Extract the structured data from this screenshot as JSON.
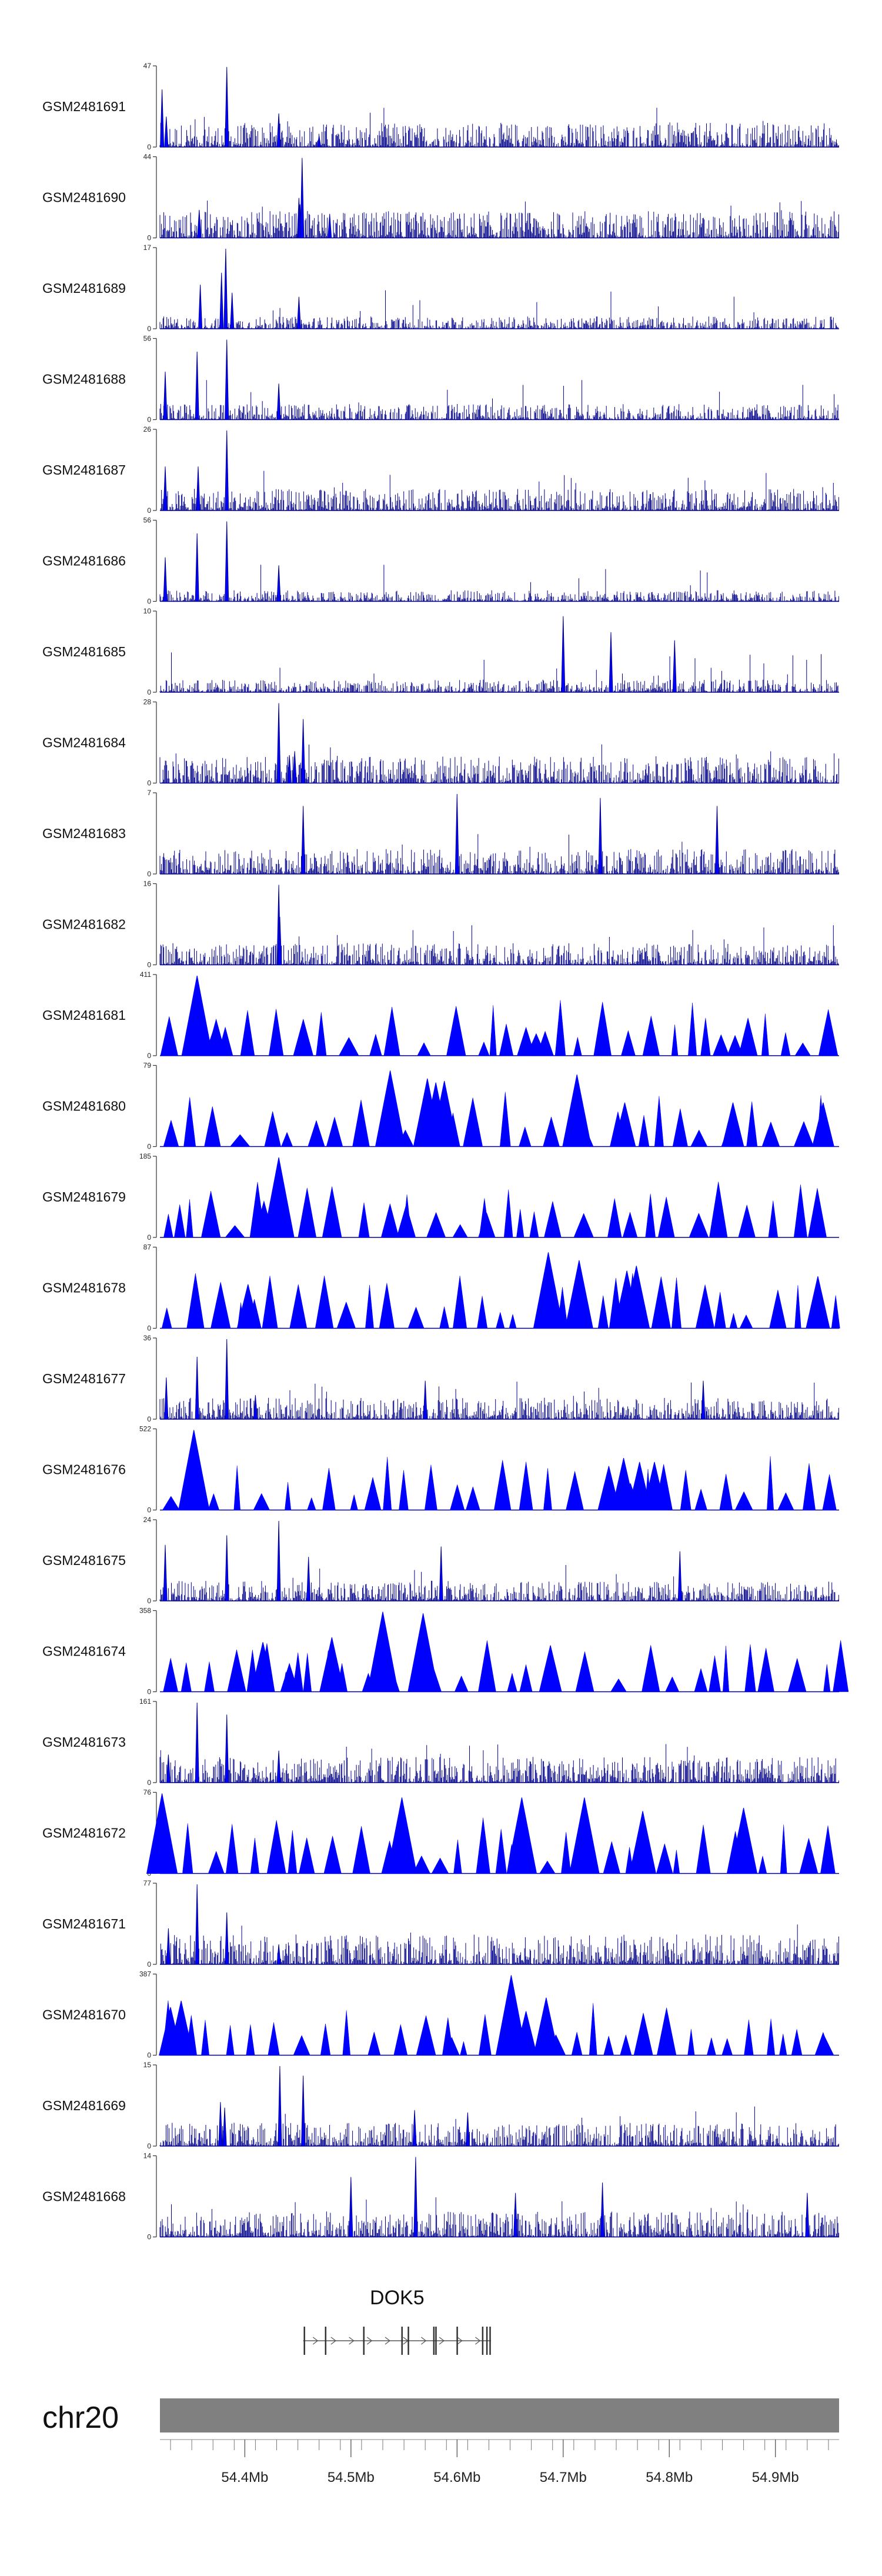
{
  "chart_data": {
    "type": "area",
    "chromosome": "chr20",
    "x_unit": "Mb",
    "xlim": [
      54.32,
      54.96
    ],
    "x_ticks": [
      54.4,
      54.5,
      54.6,
      54.7,
      54.8,
      54.9
    ],
    "x_tick_labels": [
      "54.4Mb",
      "54.5Mb",
      "54.6Mb",
      "54.7Mb",
      "54.8Mb",
      "54.9Mb"
    ],
    "colors": {
      "signal": "#0000ff",
      "signal_dark": "#00008b",
      "ideogram": "#808080",
      "axis": "#333333"
    },
    "tracks": [
      {
        "name": "GSM2481691",
        "ymax": 47,
        "ymin_label": "0",
        "ymax_label": "47",
        "style": "dense",
        "peaks": [
          [
            54.322,
            0.72
          ],
          [
            54.326,
            0.38
          ],
          [
            54.383,
            1.0
          ],
          [
            54.432,
            0.42
          ],
          [
            54.47,
            0.14
          ]
        ]
      },
      {
        "name": "GSM2481690",
        "ymax": 44,
        "ymin_label": "0",
        "ymax_label": "44",
        "style": "dense",
        "peaks": [
          [
            54.451,
            0.5
          ],
          [
            54.452,
            0.42
          ],
          [
            54.454,
            1.0
          ],
          [
            54.357,
            0.35
          ],
          [
            54.48,
            0.3
          ]
        ]
      },
      {
        "name": "GSM2481689",
        "ymax": 17,
        "ymin_label": "0",
        "ymax_label": "17",
        "style": "dense",
        "peaks": [
          [
            54.382,
            1.0
          ],
          [
            54.358,
            0.55
          ],
          [
            54.378,
            0.7
          ],
          [
            54.451,
            0.4
          ],
          [
            54.388,
            0.45
          ]
        ]
      },
      {
        "name": "GSM2481688",
        "ymax": 56,
        "ymin_label": "0",
        "ymax_label": "56",
        "style": "dense",
        "peaks": [
          [
            54.325,
            0.6
          ],
          [
            54.355,
            0.85
          ],
          [
            54.383,
            1.0
          ],
          [
            54.432,
            0.45
          ]
        ]
      },
      {
        "name": "GSM2481687",
        "ymax": 26,
        "ymin_label": "0",
        "ymax_label": "26",
        "style": "dense",
        "peaks": [
          [
            54.325,
            0.55
          ],
          [
            54.356,
            0.55
          ],
          [
            54.383,
            1.0
          ]
        ]
      },
      {
        "name": "GSM2481686",
        "ymax": 56,
        "ymin_label": "0",
        "ymax_label": "56",
        "style": "dense",
        "peaks": [
          [
            54.325,
            0.55
          ],
          [
            54.355,
            0.85
          ],
          [
            54.383,
            1.0
          ],
          [
            54.432,
            0.45
          ]
        ]
      },
      {
        "name": "GSM2481685",
        "ymax": 10,
        "ymin_label": "0",
        "ymax_label": "10",
        "style": "dense",
        "peaks": [
          [
            54.7,
            0.95
          ],
          [
            54.745,
            0.75
          ],
          [
            54.805,
            0.65
          ]
        ]
      },
      {
        "name": "GSM2481684",
        "ymax": 28,
        "ymin_label": "0",
        "ymax_label": "28",
        "style": "dense",
        "peaks": [
          [
            54.432,
            1.0
          ],
          [
            54.455,
            0.8
          ],
          [
            54.442,
            0.35
          ],
          [
            54.447,
            0.4
          ]
        ]
      },
      {
        "name": "GSM2481683",
        "ymax": 7,
        "ymin_label": "0",
        "ymax_label": "7",
        "style": "dense",
        "peaks": [
          [
            54.6,
            1.0
          ],
          [
            54.735,
            0.95
          ],
          [
            54.845,
            0.85
          ],
          [
            54.455,
            0.85
          ]
        ]
      },
      {
        "name": "GSM2481682",
        "ymax": 16,
        "ymin_label": "0",
        "ymax_label": "16",
        "style": "dense",
        "peaks": [
          [
            54.432,
            1.0
          ],
          [
            54.433,
            0.6
          ]
        ]
      },
      {
        "name": "GSM2481681",
        "ymax": 411,
        "ymin_label": "0",
        "ymax_label": "411",
        "style": "triangles",
        "peaks": [
          [
            54.355,
            1.0
          ],
          [
            54.373,
            0.45
          ],
          [
            54.37,
            0.3
          ],
          [
            54.665,
            0.35
          ],
          [
            54.683,
            0.3
          ],
          [
            54.862,
            0.25
          ]
        ]
      },
      {
        "name": "GSM2481680",
        "ymax": 79,
        "ymin_label": "0",
        "ymax_label": "79",
        "style": "triangles",
        "peaks": [
          [
            54.537,
            0.95
          ],
          [
            54.572,
            0.85
          ],
          [
            54.58,
            0.8
          ],
          [
            54.588,
            0.82
          ],
          [
            54.713,
            0.9
          ],
          [
            54.758,
            0.55
          ],
          [
            54.86,
            0.55
          ],
          [
            54.945,
            0.55
          ]
        ]
      },
      {
        "name": "GSM2481679",
        "ymax": 185,
        "ymin_label": "0",
        "ymax_label": "185",
        "style": "triangles",
        "peaks": [
          [
            54.432,
            1.0
          ],
          [
            54.418,
            0.45
          ],
          [
            54.552,
            0.4
          ],
          [
            54.628,
            0.3
          ]
        ]
      },
      {
        "name": "GSM2481678",
        "ymax": 87,
        "ymin_label": "0",
        "ymax_label": "87",
        "style": "triangles",
        "peaks": [
          [
            54.403,
            0.55
          ],
          [
            54.686,
            0.95
          ],
          [
            54.715,
            0.85
          ],
          [
            54.769,
            0.78
          ],
          [
            54.76,
            0.72
          ],
          [
            54.94,
            0.65
          ]
        ]
      },
      {
        "name": "GSM2481677",
        "ymax": 36,
        "ymin_label": "0",
        "ymax_label": "36",
        "style": "dense",
        "peaks": [
          [
            54.383,
            1.0
          ],
          [
            54.355,
            0.78
          ],
          [
            54.326,
            0.52
          ],
          [
            54.57,
            0.48
          ],
          [
            54.832,
            0.48
          ],
          [
            54.41,
            0.3
          ]
        ]
      },
      {
        "name": "GSM2481676",
        "ymax": 522,
        "ymin_label": "0",
        "ymax_label": "522",
        "style": "triangles",
        "peaks": [
          [
            54.352,
            1.0
          ],
          [
            54.353,
            0.9
          ],
          [
            54.757,
            0.65
          ],
          [
            54.772,
            0.6
          ],
          [
            54.786,
            0.6
          ],
          [
            54.743,
            0.55
          ]
        ]
      },
      {
        "name": "GSM2481675",
        "ymax": 24,
        "ymin_label": "0",
        "ymax_label": "24",
        "style": "dense",
        "peaks": [
          [
            54.432,
            1.0
          ],
          [
            54.383,
            0.82
          ],
          [
            54.325,
            0.7
          ],
          [
            54.585,
            0.68
          ],
          [
            54.81,
            0.62
          ],
          [
            54.46,
            0.55
          ]
        ]
      },
      {
        "name": "GSM2481674",
        "ymax": 358,
        "ymin_label": "0",
        "ymax_label": "358",
        "style": "triangles",
        "peaks": [
          [
            54.53,
            1.0
          ],
          [
            54.568,
            0.98
          ],
          [
            54.482,
            0.68
          ],
          [
            54.417,
            0.62
          ],
          [
            54.688,
            0.58
          ],
          [
            54.442,
            0.35
          ]
        ]
      },
      {
        "name": "GSM2481673",
        "ymax": 161,
        "ymin_label": "0",
        "ymax_label": "161",
        "style": "dense",
        "peaks": [
          [
            54.355,
            1.0
          ],
          [
            54.383,
            0.85
          ],
          [
            54.328,
            0.35
          ],
          [
            54.432,
            0.4
          ]
        ]
      },
      {
        "name": "GSM2481672",
        "ymax": 76,
        "ymin_label": "0",
        "ymax_label": "76",
        "style": "triangles",
        "peaks": [
          [
            54.322,
            1.0
          ],
          [
            54.548,
            0.95
          ],
          [
            54.661,
            0.95
          ],
          [
            54.72,
            0.95
          ],
          [
            54.775,
            0.78
          ],
          [
            54.87,
            0.82
          ]
        ]
      },
      {
        "name": "GSM2481671",
        "ymax": 77,
        "ymin_label": "0",
        "ymax_label": "77",
        "style": "dense",
        "peaks": [
          [
            54.355,
            1.0
          ],
          [
            54.383,
            0.65
          ],
          [
            54.328,
            0.45
          ],
          [
            54.432,
            0.25
          ]
        ]
      },
      {
        "name": "GSM2481670",
        "ymax": 387,
        "ymin_label": "0",
        "ymax_label": "387",
        "style": "triangles",
        "peaks": [
          [
            54.651,
            1.0
          ],
          [
            54.684,
            0.72
          ],
          [
            54.665,
            0.55
          ],
          [
            54.34,
            0.68
          ],
          [
            54.33,
            0.6
          ],
          [
            54.595,
            0.22
          ],
          [
            54.945,
            0.28
          ]
        ]
      },
      {
        "name": "GSM2481669",
        "ymax": 15,
        "ymin_label": "0",
        "ymax_label": "15",
        "style": "dense",
        "peaks": [
          [
            54.433,
            1.0
          ],
          [
            54.455,
            0.88
          ],
          [
            54.377,
            0.55
          ],
          [
            54.381,
            0.48
          ],
          [
            54.56,
            0.45
          ],
          [
            54.61,
            0.42
          ]
        ]
      },
      {
        "name": "GSM2481668",
        "ymax": 14,
        "ymin_label": "0",
        "ymax_label": "14",
        "style": "dense",
        "peaks": [
          [
            54.561,
            1.0
          ],
          [
            54.5,
            0.75
          ],
          [
            54.737,
            0.68
          ],
          [
            54.655,
            0.55
          ],
          [
            54.93,
            0.55
          ]
        ]
      }
    ],
    "gene": {
      "name": "DOK5",
      "start": 54.455,
      "end": 54.632,
      "strand": "+",
      "exons": [
        54.456,
        54.476,
        54.512,
        54.548,
        54.554,
        54.578,
        54.58,
        54.6,
        54.624,
        54.628,
        54.631
      ]
    }
  }
}
